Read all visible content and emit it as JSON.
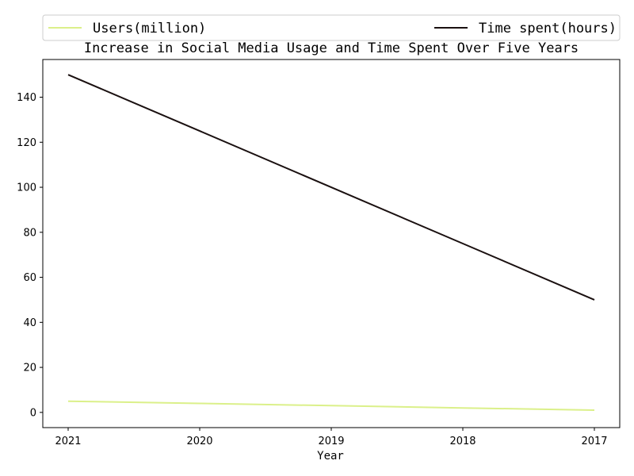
{
  "chart_data": {
    "type": "line",
    "title": "Increase in Social Media Usage and Time Spent Over Five Years",
    "xlabel": "Year",
    "ylabel": "",
    "x": [
      "2021",
      "2020",
      "2019",
      "2018",
      "2017"
    ],
    "ylim": [
      -6.75,
      156.75
    ],
    "yticks": [
      0,
      20,
      40,
      60,
      80,
      100,
      120,
      140
    ],
    "grid": false,
    "legend_position": "top",
    "series": [
      {
        "name": "Users(million)",
        "values": [
          5,
          4,
          3,
          2,
          1
        ],
        "color": "#dbf08a"
      },
      {
        "name": "Time spent(hours)",
        "values": [
          150,
          125,
          100,
          75,
          50
        ],
        "color": "#1a1010"
      }
    ]
  }
}
